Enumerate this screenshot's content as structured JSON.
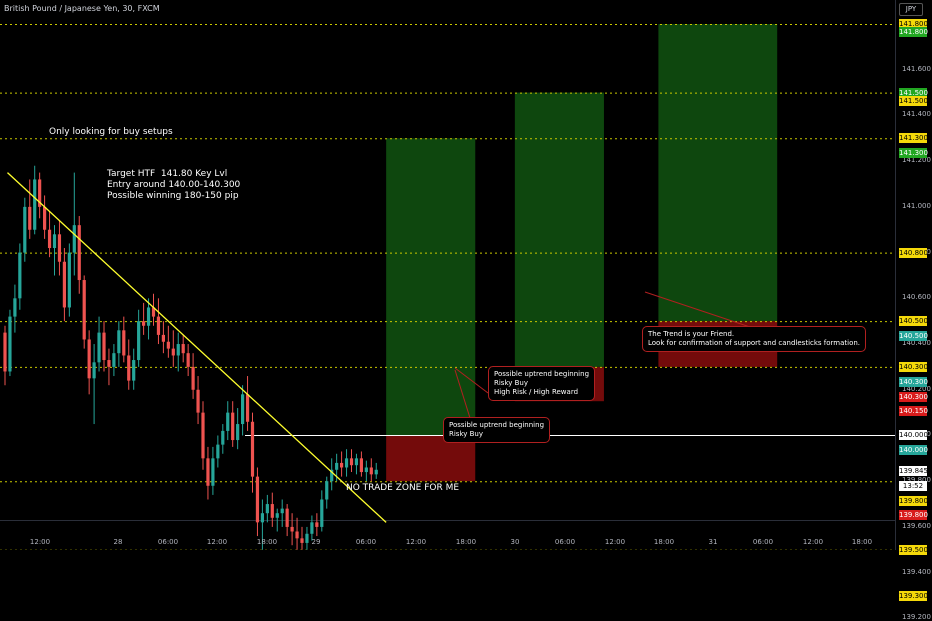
{
  "symbol_title": "British Pound / Japanese Yen, 30, FXCM",
  "currency_label": "JPY",
  "annotations": {
    "buy_setups": "Only looking for buy setups",
    "target": "Target HTF  141.80 Key Lvl\nEntry around 140.00-140.300\nPossible winning 180-150 pip",
    "no_trade": "NO TRADE ZONE FOR ME"
  },
  "callouts": {
    "uptrend_high": "Possible uptrend beginning\nRisky Buy\nHigh Risk / High Reward",
    "uptrend_low": "Possible uptrend beginning\nRisky Buy",
    "trend_friend": "The Trend is your Friend.\nLook for confirmation of support and candlesticks formation."
  },
  "y_ticks": [
    "141.600",
    "141.400",
    "141.200",
    "141.000",
    "140.800",
    "140.600",
    "140.400",
    "140.200",
    "140.000",
    "139.800",
    "139.600",
    "139.400",
    "139.200"
  ],
  "price_tags": [
    {
      "text": "141.800",
      "bg": "#f5d90a",
      "fg": "#000",
      "price": 141.8
    },
    {
      "text": "141.800",
      "bg": "#22a722",
      "fg": "#fff",
      "price": 141.765
    },
    {
      "text": "141.500",
      "bg": "#22a722",
      "fg": "#fff",
      "price": 141.5
    },
    {
      "text": "141.500",
      "bg": "#f5d90a",
      "fg": "#000",
      "price": 141.465
    },
    {
      "text": "141.300",
      "bg": "#f5d90a",
      "fg": "#000",
      "price": 141.3
    },
    {
      "text": "141.300",
      "bg": "#22a722",
      "fg": "#fff",
      "price": 141.235
    },
    {
      "text": "140.800",
      "bg": "#f5d90a",
      "fg": "#000",
      "price": 140.8
    },
    {
      "text": "140.500",
      "bg": "#f5d90a",
      "fg": "#000",
      "price": 140.5
    },
    {
      "text": "140.500",
      "bg": "#26a69a",
      "fg": "#fff",
      "price": 140.435
    },
    {
      "text": "140.300",
      "bg": "#f5d90a",
      "fg": "#000",
      "price": 140.3
    },
    {
      "text": "140.300",
      "bg": "#26a69a",
      "fg": "#fff",
      "price": 140.235
    },
    {
      "text": "140.300",
      "bg": "#d81b1b",
      "fg": "#fff",
      "price": 140.17
    },
    {
      "text": "140.150",
      "bg": "#d81b1b",
      "fg": "#fff",
      "price": 140.105
    },
    {
      "text": "140.000",
      "bg": "#ffffff",
      "fg": "#000",
      "price": 140.0
    },
    {
      "text": "140.000",
      "bg": "#26a69a",
      "fg": "#fff",
      "price": 139.935
    },
    {
      "text": "139.845",
      "bg": "#ffffff",
      "fg": "#000",
      "price": 139.845
    },
    {
      "text": "13:52",
      "bg": "#ffffff",
      "fg": "#000",
      "price": 139.78
    },
    {
      "text": "139.800",
      "bg": "#f5d90a",
      "fg": "#000",
      "price": 139.715
    },
    {
      "text": "139.800",
      "bg": "#d81b1b",
      "fg": "#fff",
      "price": 139.65
    },
    {
      "text": "139.500",
      "bg": "#f5d90a",
      "fg": "#000",
      "price": 139.5
    },
    {
      "text": "139.300",
      "bg": "#f5d90a",
      "fg": "#000",
      "price": 139.3
    }
  ],
  "x_ticks": [
    {
      "label": "12:00",
      "x": 40
    },
    {
      "label": "28",
      "x": 118
    },
    {
      "label": "06:00",
      "x": 168
    },
    {
      "label": "12:00",
      "x": 217
    },
    {
      "label": "18:00",
      "x": 267
    },
    {
      "label": "29",
      "x": 316
    },
    {
      "label": "06:00",
      "x": 366
    },
    {
      "label": "12:00",
      "x": 416
    },
    {
      "label": "18:00",
      "x": 466
    },
    {
      "label": "30",
      "x": 515
    },
    {
      "label": "06:00",
      "x": 565
    },
    {
      "label": "12:00",
      "x": 615
    },
    {
      "label": "18:00",
      "x": 664
    },
    {
      "label": "31",
      "x": 713
    },
    {
      "label": "06:00",
      "x": 763
    },
    {
      "label": "12:00",
      "x": 813
    },
    {
      "label": "18:00",
      "x": 862
    }
  ],
  "level_lines": [
    141.8,
    141.5,
    141.3,
    140.8,
    140.5,
    140.3,
    139.8,
    139.5,
    139.3
  ],
  "solid_line": 140.0,
  "colors": {
    "up": "#26a69a",
    "down": "#ef5350",
    "trend": "#ffff2e",
    "level": "#c8c800",
    "profit": "#0f4d0f",
    "loss": "#7a0c0c"
  },
  "chart_data": {
    "type": "candlestick",
    "timeframe": "30",
    "ylim": [
      139.1,
      141.85
    ],
    "trendline": {
      "from": [
        0.5,
        141.15
      ],
      "to": [
        77,
        139.62
      ]
    },
    "positions": [
      {
        "x_start": 77,
        "x_end": 95,
        "entry": 140.0,
        "target": 141.3,
        "stop": 139.8
      },
      {
        "x_start": 103,
        "x_end": 121,
        "entry": 140.3,
        "target": 141.5,
        "stop": 140.15
      },
      {
        "x_start": 132,
        "x_end": 156,
        "entry": 140.5,
        "target": 141.8,
        "stop": 140.3
      }
    ],
    "candles": [
      [
        140.45,
        140.48,
        140.22,
        140.28
      ],
      [
        140.28,
        140.55,
        140.26,
        140.52
      ],
      [
        140.52,
        140.66,
        140.45,
        140.6
      ],
      [
        140.6,
        140.84,
        140.55,
        140.8
      ],
      [
        140.8,
        141.04,
        140.76,
        141.0
      ],
      [
        141.0,
        141.12,
        140.86,
        140.9
      ],
      [
        140.9,
        141.18,
        140.88,
        141.12
      ],
      [
        141.12,
        141.15,
        140.95,
        141.0
      ],
      [
        141.0,
        141.05,
        140.86,
        140.9
      ],
      [
        140.9,
        140.98,
        140.78,
        140.82
      ],
      [
        140.82,
        140.92,
        140.7,
        140.88
      ],
      [
        140.88,
        140.94,
        140.7,
        140.76
      ],
      [
        140.76,
        140.82,
        140.5,
        140.56
      ],
      [
        140.56,
        140.84,
        140.52,
        140.8
      ],
      [
        140.8,
        141.15,
        140.7,
        140.92
      ],
      [
        140.92,
        140.96,
        140.62,
        140.68
      ],
      [
        140.68,
        140.7,
        140.38,
        140.42
      ],
      [
        140.42,
        140.46,
        140.18,
        140.25
      ],
      [
        140.25,
        140.4,
        140.05,
        140.32
      ],
      [
        140.32,
        140.52,
        140.28,
        140.45
      ],
      [
        140.45,
        140.5,
        140.28,
        140.33
      ],
      [
        140.33,
        140.38,
        140.22,
        140.3
      ],
      [
        140.3,
        140.4,
        140.26,
        140.36
      ],
      [
        140.36,
        140.5,
        140.3,
        140.46
      ],
      [
        140.46,
        140.52,
        140.32,
        140.35
      ],
      [
        140.35,
        140.42,
        140.2,
        140.24
      ],
      [
        140.24,
        140.38,
        140.2,
        140.33
      ],
      [
        140.33,
        140.55,
        140.3,
        140.5
      ],
      [
        140.5,
        140.58,
        140.44,
        140.48
      ],
      [
        140.48,
        140.6,
        140.42,
        140.56
      ],
      [
        140.56,
        140.62,
        140.48,
        140.52
      ],
      [
        140.52,
        140.6,
        140.4,
        140.44
      ],
      [
        140.44,
        140.5,
        140.36,
        140.41
      ],
      [
        140.41,
        140.48,
        140.34,
        140.38
      ],
      [
        140.38,
        140.46,
        140.3,
        140.35
      ],
      [
        140.35,
        140.45,
        140.28,
        140.4
      ],
      [
        140.4,
        140.44,
        140.32,
        140.36
      ],
      [
        140.36,
        140.4,
        140.26,
        140.3
      ],
      [
        140.3,
        140.36,
        140.16,
        140.2
      ],
      [
        140.2,
        140.26,
        140.05,
        140.1
      ],
      [
        140.1,
        140.15,
        139.85,
        139.9
      ],
      [
        139.9,
        139.95,
        139.72,
        139.78
      ],
      [
        139.78,
        139.95,
        139.74,
        139.9
      ],
      [
        139.9,
        140.0,
        139.86,
        139.96
      ],
      [
        139.96,
        140.05,
        139.92,
        140.02
      ],
      [
        140.02,
        140.15,
        139.98,
        140.1
      ],
      [
        140.1,
        140.15,
        139.95,
        139.98
      ],
      [
        139.98,
        140.12,
        139.94,
        140.05
      ],
      [
        140.05,
        140.22,
        140.0,
        140.18
      ],
      [
        140.18,
        140.26,
        140.02,
        140.06
      ],
      [
        140.06,
        140.1,
        139.75,
        139.82
      ],
      [
        139.82,
        139.86,
        139.56,
        139.62
      ],
      [
        139.62,
        139.72,
        139.5,
        139.66
      ],
      [
        139.66,
        139.74,
        139.62,
        139.7
      ],
      [
        139.7,
        139.75,
        139.6,
        139.64
      ],
      [
        139.64,
        139.68,
        139.58,
        139.66
      ],
      [
        139.66,
        139.72,
        139.6,
        139.68
      ],
      [
        139.68,
        139.7,
        139.56,
        139.6
      ],
      [
        139.6,
        139.66,
        139.52,
        139.58
      ],
      [
        139.58,
        139.64,
        139.5,
        139.55
      ],
      [
        139.55,
        139.6,
        139.5,
        139.53
      ],
      [
        139.53,
        139.6,
        139.5,
        139.57
      ],
      [
        139.57,
        139.65,
        139.54,
        139.62
      ],
      [
        139.62,
        139.66,
        139.56,
        139.6
      ],
      [
        139.6,
        139.76,
        139.58,
        139.72
      ],
      [
        139.72,
        139.82,
        139.68,
        139.8
      ],
      [
        139.8,
        139.9,
        139.76,
        139.85
      ],
      [
        139.85,
        139.92,
        139.8,
        139.88
      ],
      [
        139.88,
        139.93,
        139.82,
        139.86
      ],
      [
        139.86,
        139.94,
        139.82,
        139.9
      ],
      [
        139.9,
        139.94,
        139.84,
        139.87
      ],
      [
        139.87,
        139.92,
        139.83,
        139.9
      ],
      [
        139.9,
        139.93,
        139.82,
        139.84
      ],
      [
        139.84,
        139.89,
        139.8,
        139.86
      ],
      [
        139.86,
        139.9,
        139.8,
        139.83
      ],
      [
        139.83,
        139.88,
        139.81,
        139.85
      ]
    ]
  }
}
